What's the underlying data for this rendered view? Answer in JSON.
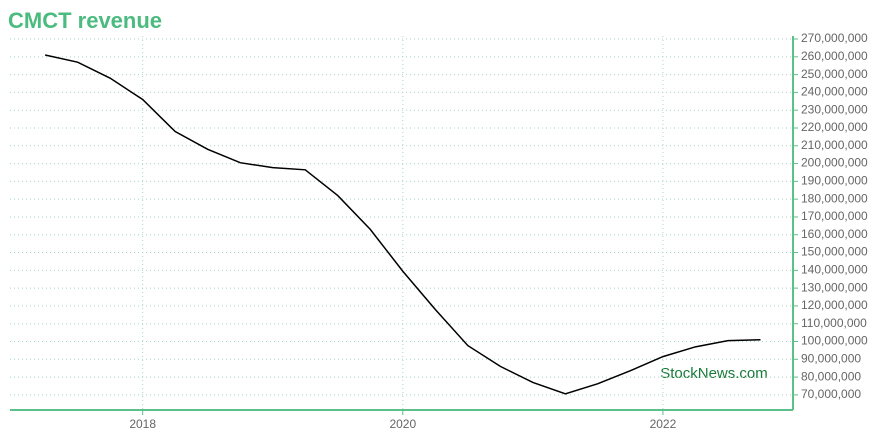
{
  "chart_data": {
    "type": "line",
    "title": "CMCT revenue",
    "watermark": "StockNews.com",
    "x": [
      2017.25,
      2017.5,
      2017.75,
      2018.0,
      2018.25,
      2018.5,
      2018.75,
      2019.0,
      2019.25,
      2019.5,
      2019.75,
      2020.0,
      2020.25,
      2020.5,
      2020.75,
      2021.0,
      2021.25,
      2021.5,
      2021.75,
      2022.0,
      2022.25,
      2022.5,
      2022.75
    ],
    "series": [
      {
        "name": "CMCT revenue",
        "color": "#000000",
        "values": [
          261000000,
          257000000,
          248000000,
          236000000,
          218000000,
          208000000,
          200500000,
          197700000,
          196500000,
          182000000,
          163000000,
          139500000,
          118000000,
          97700000,
          86000000,
          77000000,
          70600000,
          76300000,
          83600000,
          91500000,
          97000000,
          100500000,
          101000000
        ]
      }
    ],
    "xlim": [
      2016.98,
      2023.0
    ],
    "xticks": [
      2018,
      2020,
      2022
    ],
    "ylim": [
      61500000,
      271700000
    ],
    "yticks": [
      {
        "value": 70000000,
        "label": "70,000,000"
      },
      {
        "value": 80000000,
        "label": "80,000,000"
      },
      {
        "value": 90000000,
        "label": "90,000,000"
      },
      {
        "value": 100000000,
        "label": "100,000,000"
      },
      {
        "value": 110000000,
        "label": "110,000,000"
      },
      {
        "value": 120000000,
        "label": "120,000,000"
      },
      {
        "value": 130000000,
        "label": "130,000,000"
      },
      {
        "value": 140000000,
        "label": "140,000,000"
      },
      {
        "value": 150000000,
        "label": "150,000,000"
      },
      {
        "value": 160000000,
        "label": "160,000,000"
      },
      {
        "value": 170000000,
        "label": "170,000,000"
      },
      {
        "value": 180000000,
        "label": "180,000,000"
      },
      {
        "value": 190000000,
        "label": "190,000,000"
      },
      {
        "value": 200000000,
        "label": "200,000,000"
      },
      {
        "value": 210000000,
        "label": "210,000,000"
      },
      {
        "value": 220000000,
        "label": "220,000,000"
      },
      {
        "value": 230000000,
        "label": "230,000,000"
      },
      {
        "value": 240000000,
        "label": "240,000,000"
      },
      {
        "value": 250000000,
        "label": "250,000,000"
      },
      {
        "value": 260000000,
        "label": "260,000,000"
      },
      {
        "value": 270000000,
        "label": "270,000,000"
      }
    ],
    "grid": true
  }
}
